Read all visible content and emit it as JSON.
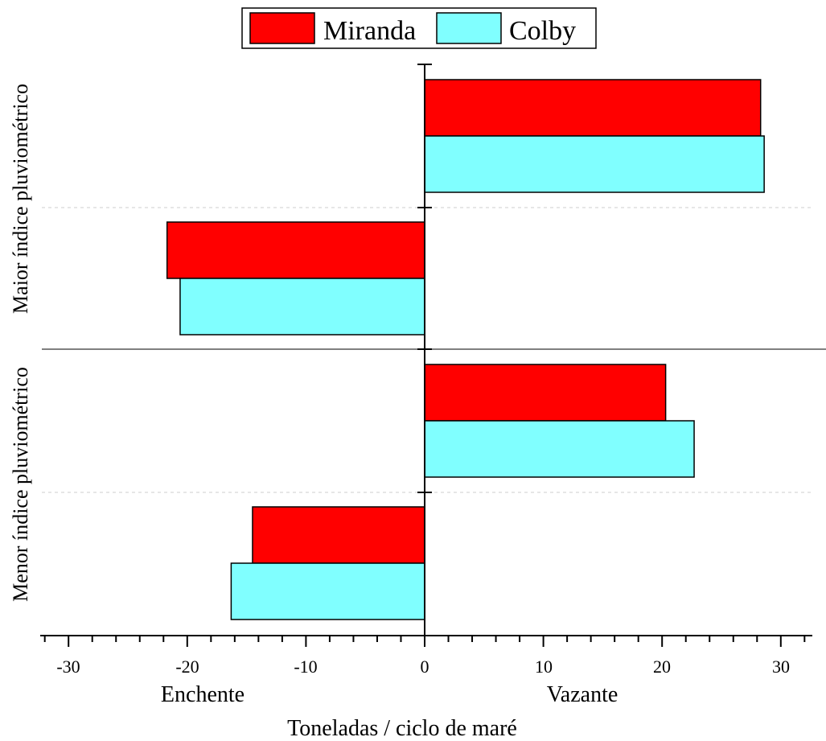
{
  "chart_data": {
    "type": "bar",
    "orientation": "horizontal",
    "categories": [
      "Maior índice pluviométrico",
      "Menor índice pluviométrico"
    ],
    "directions": [
      "Vazante",
      "Enchente"
    ],
    "series": [
      {
        "name": "Miranda",
        "color": "#ff0000",
        "values": {
          "Maior índice pluviométrico": {
            "Vazante": 28.3,
            "Enchente": -21.7
          },
          "Menor índice pluviométrico": {
            "Vazante": 20.3,
            "Enchente": -14.5
          }
        }
      },
      {
        "name": "Colby",
        "color": "#80ffff",
        "values": {
          "Maior índice pluviométrico": {
            "Vazante": 28.6,
            "Enchente": -20.6
          },
          "Menor índice pluviométrico": {
            "Vazante": 22.7,
            "Enchente": -16.3
          }
        }
      }
    ],
    "xlabel": "Toneladas / ciclo de maré",
    "xlabel_left": "Enchente",
    "xlabel_right": "Vazante",
    "xlim": [
      -32.5,
      32.5
    ],
    "xticks": [
      -30,
      -20,
      -10,
      0,
      10,
      20,
      30
    ],
    "xtick_labels": [
      "-30",
      "-20",
      "-10",
      "0",
      "10",
      "20",
      "30"
    ],
    "legend_position": "top-center",
    "grid": false
  }
}
